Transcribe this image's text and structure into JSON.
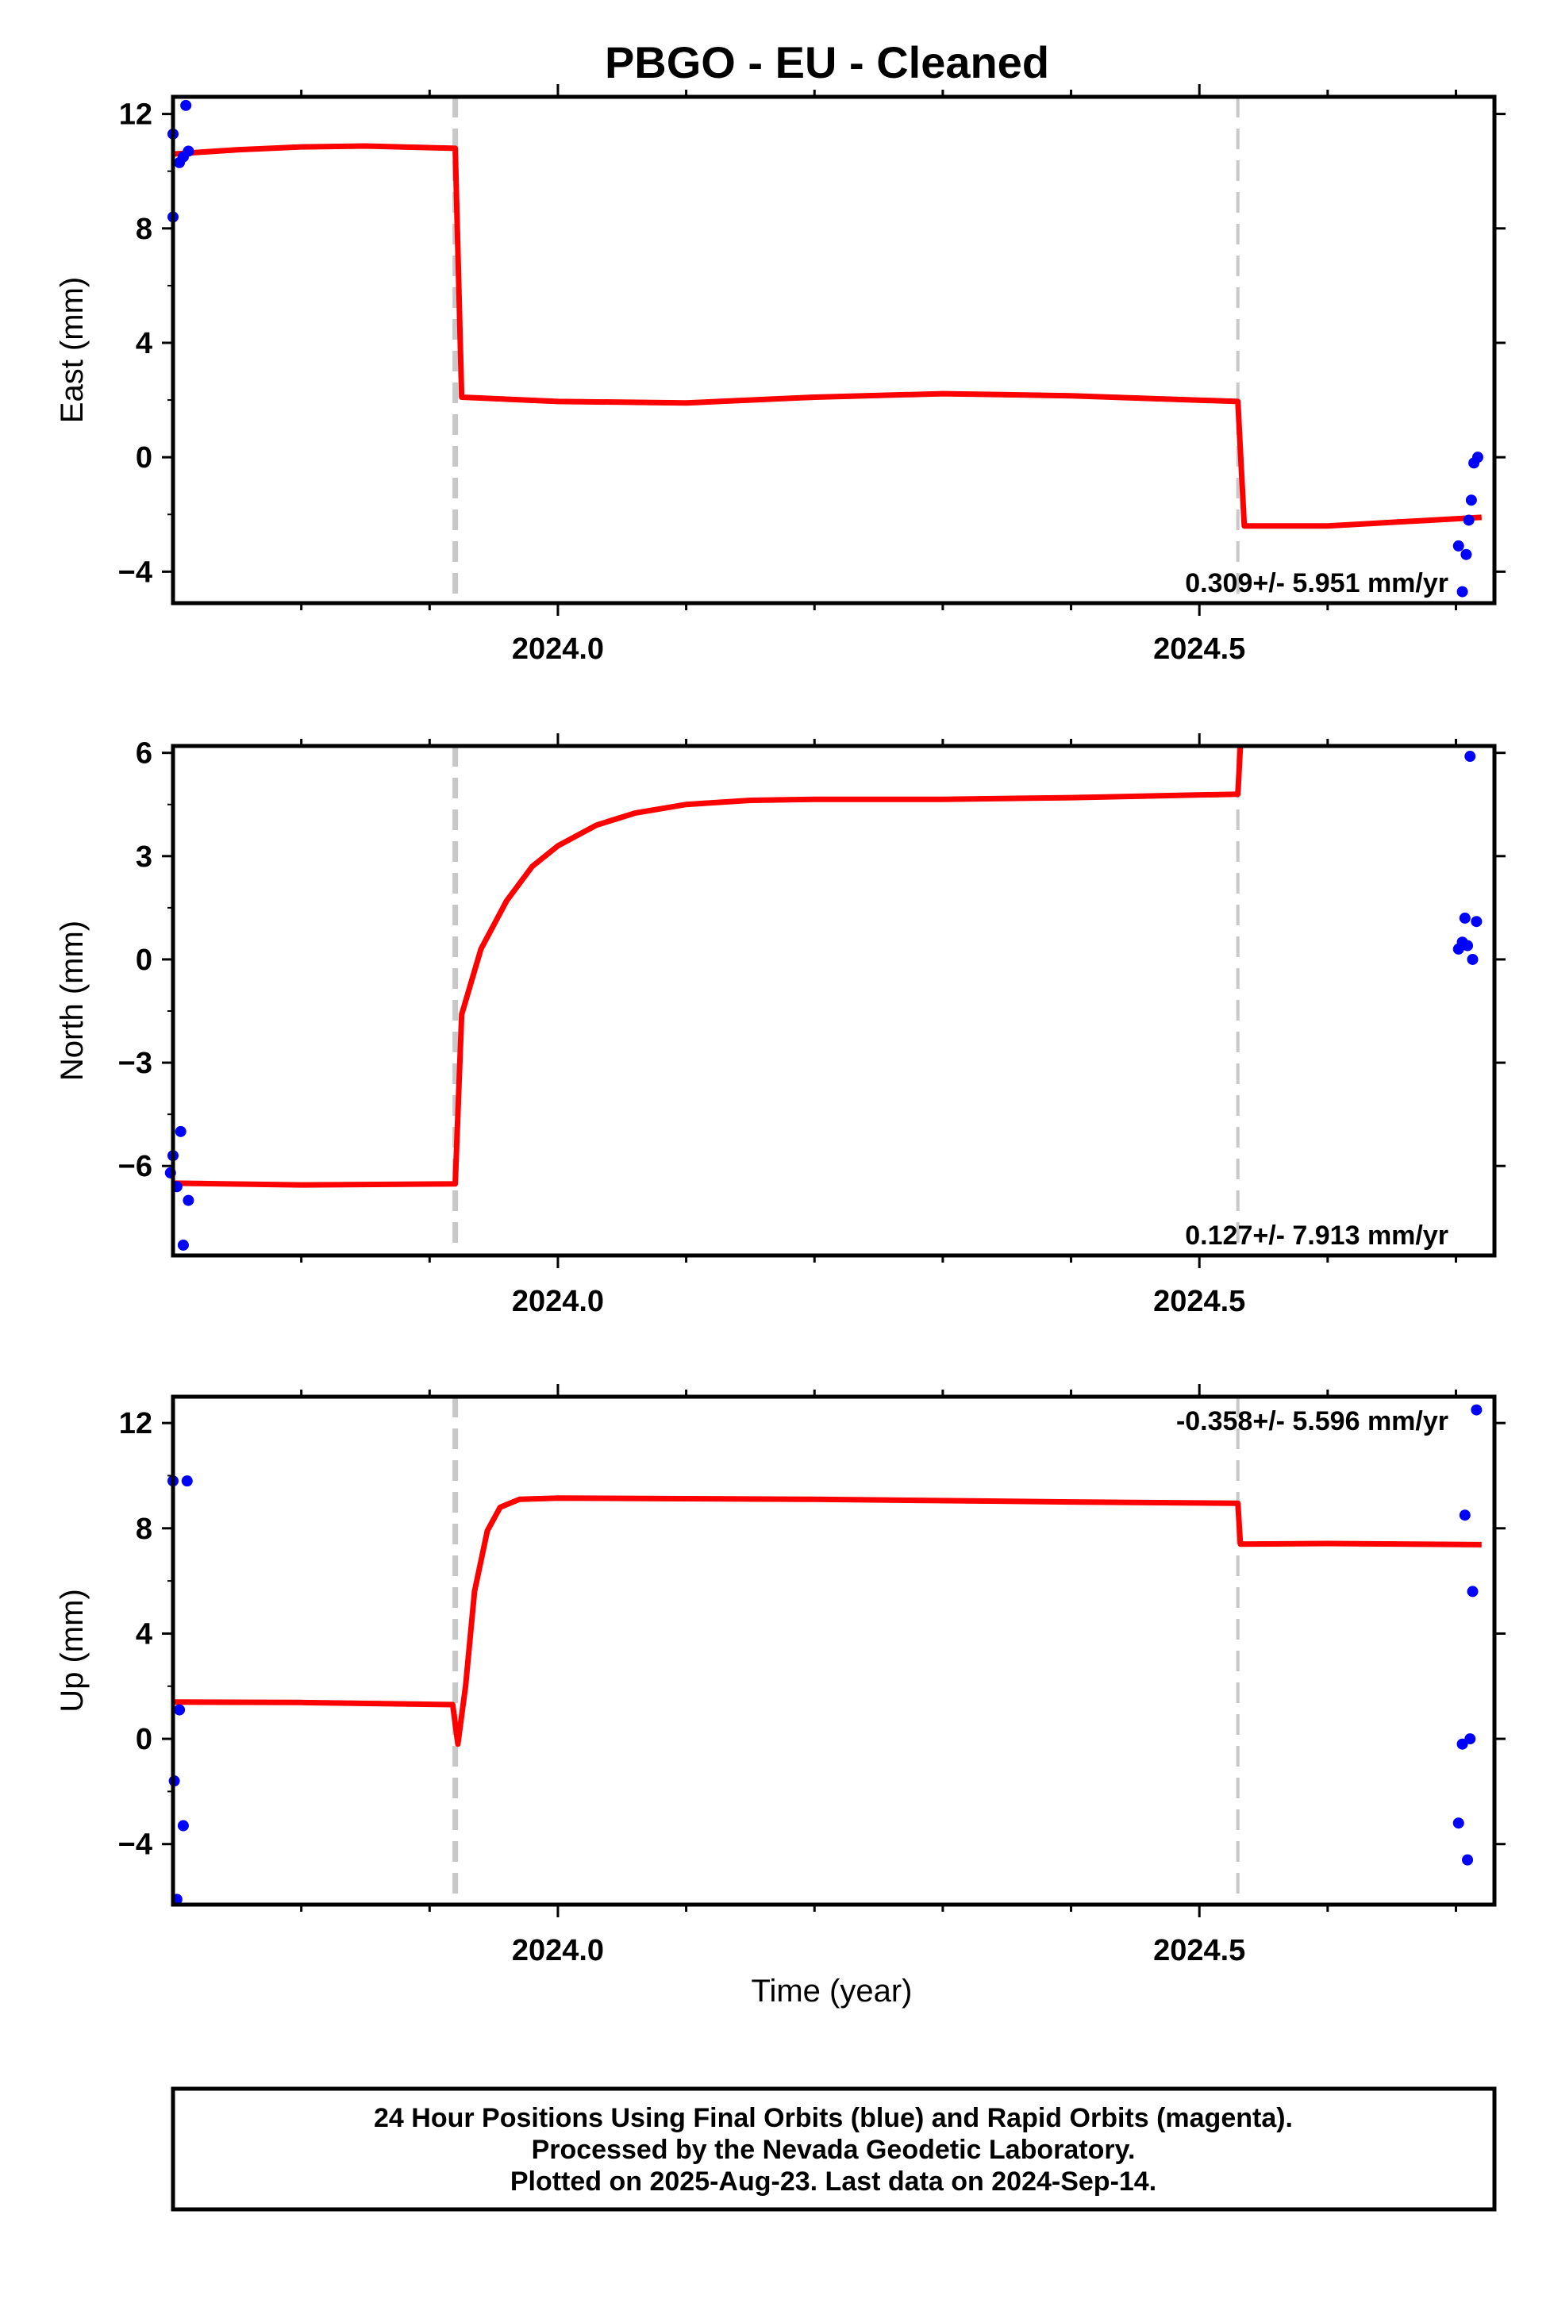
{
  "chart_data": {
    "type": "scatter",
    "title": "PBGO  - EU - Cleaned",
    "xlabel": "Time (year)",
    "xlim": [
      2023.7,
      2024.73
    ],
    "x_ticks": [
      2024.0,
      2024.5
    ],
    "x_tick_labels": [
      "2024.0",
      "2024.5"
    ],
    "offset_lines_x": [
      2023.92,
      2024.53
    ],
    "colors": {
      "data": "#0000ff",
      "model": "#ff0000",
      "offset": "#c8c8c8",
      "frame": "#000000"
    },
    "panels": [
      {
        "name": "east",
        "ylabel": "East (mm)",
        "ylim": [
          -5.1,
          12.6
        ],
        "y_ticks": [
          -4,
          0,
          4,
          8,
          12
        ],
        "y_tick_labels": [
          "−4",
          "0",
          "4",
          "8",
          "12"
        ],
        "rate_text": "0.309+/- 5.951 mm/yr",
        "rate_position": "bottom-right",
        "points": [
          [
            2023.7,
            8.4
          ],
          [
            2023.7,
            11.3
          ],
          [
            2023.705,
            10.3
          ],
          [
            2023.708,
            10.5
          ],
          [
            2023.71,
            12.3
          ],
          [
            2023.712,
            10.7
          ],
          [
            2024.702,
            -3.1
          ],
          [
            2024.705,
            -4.7
          ],
          [
            2024.708,
            -3.4
          ],
          [
            2024.71,
            -2.2
          ],
          [
            2024.712,
            -1.5
          ],
          [
            2024.714,
            -0.2
          ],
          [
            2024.717,
            0.0
          ]
        ],
        "model": [
          [
            2023.7,
            10.6
          ],
          [
            2023.75,
            10.75
          ],
          [
            2023.8,
            10.85
          ],
          [
            2023.85,
            10.88
          ],
          [
            2023.92,
            10.8
          ],
          [
            2023.925,
            2.1
          ],
          [
            2024.0,
            1.95
          ],
          [
            2024.1,
            1.9
          ],
          [
            2024.2,
            2.1
          ],
          [
            2024.3,
            2.22
          ],
          [
            2024.4,
            2.15
          ],
          [
            2024.53,
            1.95
          ],
          [
            2024.535,
            -2.4
          ],
          [
            2024.6,
            -2.4
          ],
          [
            2024.72,
            -2.1
          ]
        ]
      },
      {
        "name": "north",
        "ylabel": "North (mm)",
        "ylim": [
          -8.6,
          6.2
        ],
        "y_ticks": [
          -6,
          -3,
          0,
          3,
          6
        ],
        "y_tick_labels": [
          "−6",
          "−3",
          "0",
          "3",
          "6"
        ],
        "rate_text": "0.127+/- 7.913 mm/yr",
        "rate_position": "bottom-right",
        "points": [
          [
            2023.698,
            -6.2
          ],
          [
            2023.7,
            -5.7
          ],
          [
            2023.703,
            -6.6
          ],
          [
            2023.706,
            -5.0
          ],
          [
            2023.708,
            -8.3
          ],
          [
            2023.712,
            -7.0
          ],
          [
            2024.702,
            0.3
          ],
          [
            2024.705,
            0.5
          ],
          [
            2024.707,
            1.2
          ],
          [
            2024.709,
            0.4
          ],
          [
            2024.711,
            5.9
          ],
          [
            2024.713,
            0.0
          ],
          [
            2024.716,
            1.1
          ]
        ],
        "model": [
          [
            2023.7,
            -6.5
          ],
          [
            2023.8,
            -6.55
          ],
          [
            2023.92,
            -6.52
          ],
          [
            2023.925,
            -1.6
          ],
          [
            2023.94,
            0.3
          ],
          [
            2023.96,
            1.7
          ],
          [
            2023.98,
            2.7
          ],
          [
            2024.0,
            3.3
          ],
          [
            2024.03,
            3.9
          ],
          [
            2024.06,
            4.25
          ],
          [
            2024.1,
            4.5
          ],
          [
            2024.15,
            4.62
          ],
          [
            2024.2,
            4.65
          ],
          [
            2024.3,
            4.65
          ],
          [
            2024.4,
            4.7
          ],
          [
            2024.53,
            4.8
          ],
          [
            2024.532,
            6.2
          ]
        ]
      },
      {
        "name": "up",
        "ylabel": "Up (mm)",
        "ylim": [
          -6.3,
          13.0
        ],
        "y_ticks": [
          -4,
          0,
          4,
          8,
          12
        ],
        "y_tick_labels": [
          "−4",
          "0",
          "4",
          "8",
          "12"
        ],
        "rate_text": "-0.358+/- 5.596 mm/yr",
        "rate_position": "top-right",
        "points": [
          [
            2023.7,
            9.8
          ],
          [
            2023.701,
            -1.6
          ],
          [
            2023.703,
            -6.1
          ],
          [
            2023.705,
            1.1
          ],
          [
            2023.708,
            -3.3
          ],
          [
            2023.711,
            9.8
          ],
          [
            2024.702,
            -3.2
          ],
          [
            2024.705,
            -0.2
          ],
          [
            2024.707,
            8.5
          ],
          [
            2024.709,
            -4.6
          ],
          [
            2024.711,
            0.0
          ],
          [
            2024.713,
            5.6
          ],
          [
            2024.716,
            12.5
          ]
        ],
        "model": [
          [
            2023.7,
            1.4
          ],
          [
            2023.8,
            1.38
          ],
          [
            2023.918,
            1.3
          ],
          [
            2023.922,
            -0.2
          ],
          [
            2023.928,
            2.0
          ],
          [
            2023.935,
            5.6
          ],
          [
            2023.945,
            7.9
          ],
          [
            2023.955,
            8.8
          ],
          [
            2023.97,
            9.1
          ],
          [
            2024.0,
            9.15
          ],
          [
            2024.2,
            9.1
          ],
          [
            2024.4,
            9.0
          ],
          [
            2024.53,
            8.95
          ],
          [
            2024.532,
            7.4
          ],
          [
            2024.6,
            7.42
          ],
          [
            2024.72,
            7.38
          ]
        ]
      }
    ],
    "footer_lines": [
      "24 Hour Positions Using Final Orbits (blue) and Rapid Orbits (magenta).",
      "Processed by the Nevada Geodetic Laboratory.",
      "Plotted on 2025-Aug-23. Last data on 2024-Sep-14."
    ]
  }
}
